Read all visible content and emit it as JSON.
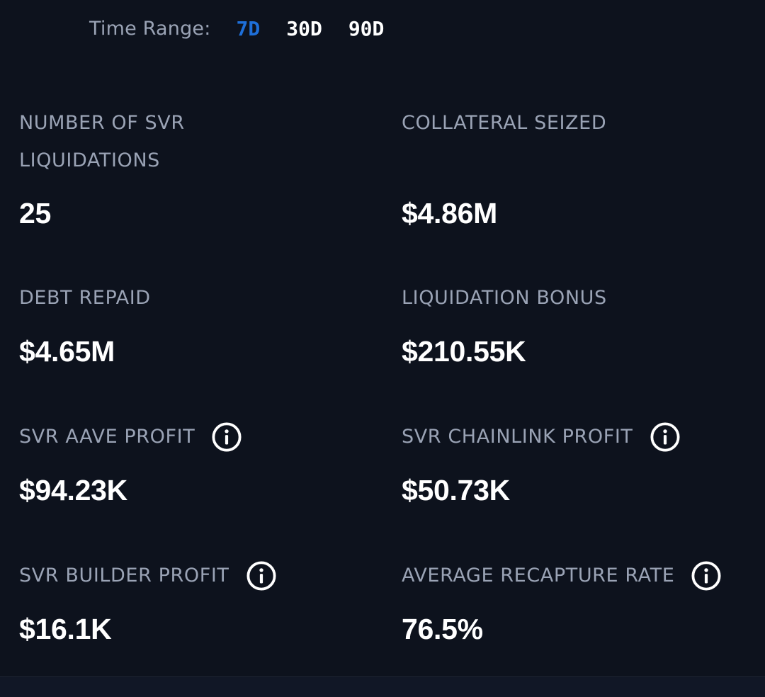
{
  "time_range": {
    "label": "Time Range:",
    "options": [
      "7D",
      "30D",
      "90D"
    ],
    "selected": "7D",
    "accent_color": "#1e6fd9"
  },
  "stats": [
    {
      "label": "NUMBER OF SVR LIQUIDATIONS",
      "value": "25",
      "has_info": false
    },
    {
      "label": "COLLATERAL SEIZED",
      "value": "$4.86M",
      "has_info": false
    },
    {
      "label": "DEBT REPAID",
      "value": "$4.65M",
      "has_info": false
    },
    {
      "label": "LIQUIDATION BONUS",
      "value": "$210.55K",
      "has_info": false
    },
    {
      "label": "SVR AAVE PROFIT",
      "value": "$94.23K",
      "has_info": true,
      "icon": "info-icon"
    },
    {
      "label": "SVR CHAINLINK PROFIT",
      "value": "$50.73K",
      "has_info": true,
      "icon": "info-icon"
    },
    {
      "label": "SVR BUILDER PROFIT",
      "value": "$16.1K",
      "has_info": true,
      "icon": "info-icon"
    },
    {
      "label": "AVERAGE RECAPTURE RATE",
      "value": "76.5%",
      "has_info": true,
      "icon": "info-icon"
    }
  ],
  "colors": {
    "background": "#0d121d",
    "label": "#9aa3b5",
    "value": "#ffffff"
  }
}
